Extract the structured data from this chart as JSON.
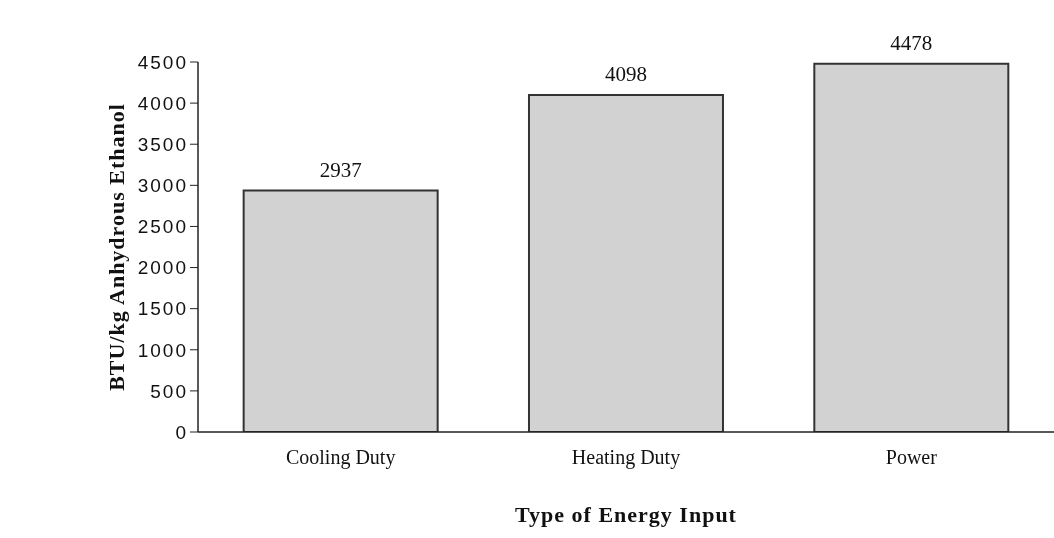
{
  "chart_data": {
    "type": "bar",
    "xlabel": "Type of Energy Input",
    "ylabel": "BTU/kg Anhydrous Ethanol",
    "categories": [
      "Cooling Duty",
      "Heating Duty",
      "Power"
    ],
    "values": [
      2937,
      4098,
      4478
    ],
    "color": "#d2d2d2",
    "ylim": [
      0,
      4500
    ],
    "yticks": [
      0,
      500,
      1000,
      1500,
      2000,
      2500,
      3000,
      3500,
      4000,
      4500
    ],
    "grid": false,
    "data_labels": true
  }
}
